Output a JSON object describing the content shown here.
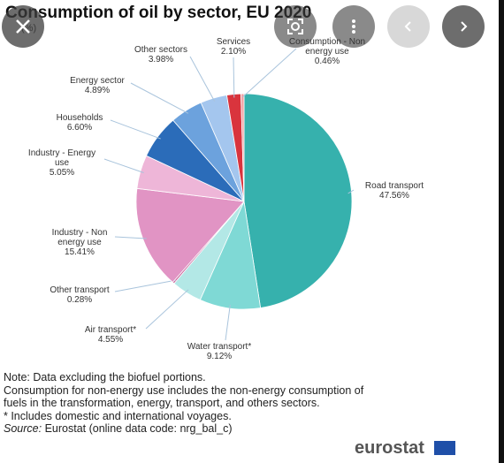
{
  "chart_data": {
    "type": "pie",
    "title": "Consumption of oil by sector, EU 2020",
    "subtitle": "(%)",
    "categories": [
      "Road transport",
      "Water transport*",
      "Air transport*",
      "Other transport",
      "Industry - Non energy use",
      "Industry - Energy use",
      "Households",
      "Energy sector",
      "Other sectors",
      "Services",
      "Consumption - Non energy use"
    ],
    "values": [
      47.56,
      9.12,
      4.55,
      0.28,
      15.41,
      5.05,
      6.6,
      4.89,
      3.98,
      2.1,
      0.46
    ],
    "value_labels": [
      "47.56%",
      "9.12%",
      "4.55%",
      "0.28%",
      "15.41%",
      "5.05%",
      "6.60%",
      "4.89%",
      "3.98%",
      "2.10%",
      "0.46%"
    ],
    "colors": [
      "#36b1ad",
      "#7fd9d5",
      "#b3e8e6",
      "#c8679c",
      "#e194c4",
      "#eeb6d8",
      "#2b6cb9",
      "#6ca2dd",
      "#a4c6ee",
      "#d9343d",
      "#f3a2a4"
    ]
  },
  "notes": [
    "Note: Data excluding the biofuel portions.",
    "Consumption for non-energy use includes the non-energy consumption of fuels in the transformation, energy, transport, and others sectors.",
    "* Includes domestic and international voyages."
  ],
  "source": {
    "label": "Source:",
    "text": " Eurostat (online data code: nrg_bal_c)"
  },
  "logo": "eurostat"
}
